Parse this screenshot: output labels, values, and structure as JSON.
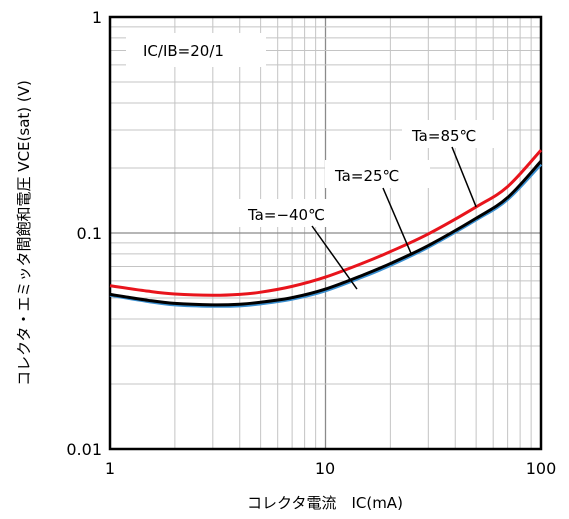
{
  "chart_data": {
    "type": "line",
    "xlabel": "コレクタ電流　IC(mA)",
    "ylabel": "コレクタ・エミッタ間飽和電圧 VCE(sat) (V)",
    "x_scale": "log",
    "y_scale": "log",
    "xlim": [
      1,
      100
    ],
    "ylim": [
      0.01,
      1
    ],
    "grid": true,
    "x_ticks": [
      "1",
      "10",
      "100"
    ],
    "y_ticks": [
      "0.01",
      "0.1",
      "1"
    ],
    "annotation_box": "IC/IB=20/1",
    "series": [
      {
        "name": "Ta=85°C",
        "color": "#e8141c",
        "x": [
          1,
          1.5,
          2,
          3,
          4,
          5,
          7,
          10,
          15,
          20,
          30,
          50,
          70,
          100
        ],
        "y": [
          0.057,
          0.0538,
          0.0522,
          0.0515,
          0.052,
          0.0532,
          0.0566,
          0.0625,
          0.0727,
          0.082,
          0.099,
          0.132,
          0.164,
          0.242
        ]
      },
      {
        "name": "Ta=25°C",
        "color": "#000000",
        "x": [
          1,
          1.5,
          2,
          3,
          4,
          5,
          7,
          10,
          15,
          20,
          30,
          50,
          70,
          100
        ],
        "y": [
          0.052,
          0.0488,
          0.0472,
          0.0465,
          0.0468,
          0.0478,
          0.0502,
          0.055,
          0.064,
          0.0722,
          0.0875,
          0.117,
          0.146,
          0.215
        ]
      },
      {
        "name": "Ta=−40°C",
        "color": "#3a8fd0",
        "x": [
          1,
          1.5,
          2,
          3,
          4,
          5,
          7,
          10,
          15,
          20,
          30,
          50,
          70,
          100
        ],
        "y": [
          0.0515,
          0.0482,
          0.0465,
          0.0458,
          0.046,
          0.047,
          0.0494,
          0.054,
          0.0628,
          0.0708,
          0.086,
          0.115,
          0.143,
          0.208
        ]
      }
    ],
    "labels": [
      {
        "text": "Ta=85℃",
        "series": 0
      },
      {
        "text": "Ta=25℃",
        "series": 1
      },
      {
        "text": "Ta=−40℃",
        "series": 2
      }
    ],
    "label_leader_points": [
      {
        "x": 50,
        "y": 0.132
      },
      {
        "x": 25,
        "y": 0.08
      },
      {
        "x": 14,
        "y": 0.055
      }
    ]
  }
}
